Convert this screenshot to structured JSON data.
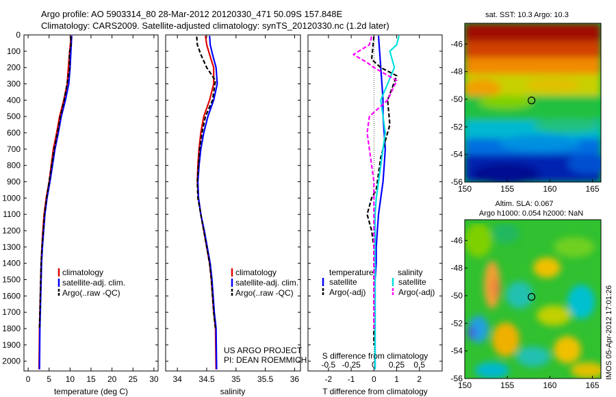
{
  "header": {
    "line1": "Argo profile: AO 5903314_80 28-Mar-2012 20120330_471 50.09S 157.848E",
    "line2": "Climatology: CARS2009. Satellite-adjusted climatology: synTS_20120330.nc (1.2d later)"
  },
  "colors": {
    "climatology": "#e00000",
    "satellite_adj": "#0000ff",
    "argo": "#000000",
    "satellite_s": "#00e0e0",
    "argo_s": "#ff00ff"
  },
  "chart_data": [
    {
      "type": "line",
      "panel": "temperature",
      "xlabel": "temperature (deg C)",
      "ylabel": "",
      "xlim": [
        -1,
        31
      ],
      "ylim": [
        2060,
        0
      ],
      "y_inverted": true,
      "xticks": [
        "0",
        "5",
        "10",
        "15",
        "20",
        "25",
        "30"
      ],
      "xtick_values": [
        0,
        5,
        10,
        15,
        20,
        25,
        30
      ],
      "yticks": [
        "0",
        "100",
        "200",
        "300",
        "400",
        "500",
        "600",
        "700",
        "800",
        "900",
        "1000",
        "1100",
        "1200",
        "1300",
        "1400",
        "1500",
        "1600",
        "1700",
        "1800",
        "1900",
        "2000"
      ],
      "ytick_values": [
        0,
        100,
        200,
        300,
        400,
        500,
        600,
        700,
        800,
        900,
        1000,
        1100,
        1200,
        1300,
        1400,
        1500,
        1600,
        1700,
        1800,
        1900,
        2000
      ],
      "legend": [
        "climatology",
        "satellite-adj. clim.",
        "Argo(..raw -QC)"
      ],
      "series": [
        {
          "name": "climatology",
          "style": "solid",
          "color": "#e00000",
          "x": [
            10.2,
            10.1,
            9.9,
            9.6,
            9.3,
            8.5,
            7.5,
            6.8,
            6.0,
            5.5,
            5.0,
            4.3,
            3.8,
            3.5,
            3.3,
            3.1,
            3.0,
            2.9,
            2.8,
            2.7,
            2.6
          ],
          "y": [
            5,
            50,
            100,
            200,
            300,
            400,
            500,
            600,
            700,
            800,
            900,
            1000,
            1100,
            1200,
            1300,
            1400,
            1500,
            1600,
            1700,
            1800,
            2050
          ]
        },
        {
          "name": "satellite-adj. clim.",
          "style": "solid",
          "color": "#0000ff",
          "x": [
            10.4,
            10.3,
            10.2,
            10.0,
            9.7,
            8.9,
            7.9,
            7.2,
            6.4,
            5.8,
            5.2,
            4.5,
            4.0,
            3.7,
            3.4,
            3.2,
            3.1,
            3.0,
            2.9,
            2.8,
            2.7
          ],
          "y": [
            5,
            50,
            100,
            200,
            300,
            400,
            500,
            600,
            700,
            800,
            900,
            1000,
            1100,
            1200,
            1300,
            1400,
            1500,
            1600,
            1700,
            1800,
            2050
          ]
        },
        {
          "name": "Argo(..raw -QC)",
          "style": "dashed",
          "color": "#000000",
          "x": [
            10.2,
            10.2,
            9.8,
            9.9,
            9.3,
            8.6,
            7.7,
            7.0,
            6.2,
            5.6,
            5.0,
            4.4,
            3.9,
            3.6,
            3.3,
            3.1,
            3.0,
            2.9,
            2.8,
            2.7
          ],
          "y": [
            10,
            60,
            120,
            200,
            300,
            400,
            500,
            600,
            700,
            800,
            900,
            1000,
            1100,
            1200,
            1300,
            1400,
            1500,
            1600,
            1700,
            1800
          ]
        }
      ]
    },
    {
      "type": "line",
      "panel": "salinity",
      "xlabel": "salinity",
      "ylabel": "",
      "xlim": [
        33.8,
        36.1
      ],
      "ylim": [
        2060,
        0
      ],
      "y_inverted": true,
      "xticks": [
        "34",
        "34.5",
        "35",
        "35.5",
        "36"
      ],
      "xtick_values": [
        34,
        34.5,
        35,
        35.5,
        36
      ],
      "legend": [
        "climatology",
        "satellite-adj. clim.",
        "Argo(..raw -QC)"
      ],
      "annotation": [
        "US ARGO PROJECT",
        "PI: DEAN ROEMMICH"
      ],
      "series": [
        {
          "name": "climatology",
          "style": "solid",
          "color": "#e00000",
          "x": [
            34.48,
            34.5,
            34.55,
            34.62,
            34.62,
            34.55,
            34.45,
            34.4,
            34.37,
            34.35,
            34.34,
            34.36,
            34.4,
            34.45,
            34.5,
            34.55,
            34.58,
            34.6,
            34.62,
            34.65,
            34.66
          ],
          "y": [
            5,
            60,
            120,
            200,
            300,
            400,
            500,
            600,
            700,
            800,
            900,
            1000,
            1100,
            1200,
            1300,
            1400,
            1500,
            1600,
            1700,
            1800,
            2050
          ]
        },
        {
          "name": "satellite-adj. clim.",
          "style": "solid",
          "color": "#0000ff",
          "x": [
            34.55,
            34.56,
            34.6,
            34.66,
            34.68,
            34.62,
            34.52,
            34.45,
            34.4,
            34.37,
            34.35,
            34.36,
            34.4,
            34.46,
            34.51,
            34.56,
            34.59,
            34.61,
            34.63,
            34.66,
            34.67
          ],
          "y": [
            5,
            60,
            120,
            200,
            300,
            400,
            500,
            600,
            700,
            800,
            900,
            1000,
            1100,
            1200,
            1300,
            1400,
            1500,
            1600,
            1700,
            1800,
            2050
          ]
        },
        {
          "name": "Argo(..raw -QC)",
          "style": "dashed",
          "color": "#000000",
          "x": [
            34.33,
            34.34,
            34.4,
            34.5,
            34.65,
            34.6,
            34.48,
            34.42,
            34.38,
            34.36,
            34.34,
            34.35,
            34.4,
            34.45,
            34.5,
            34.55,
            34.58,
            34.6,
            34.62,
            34.65
          ],
          "y": [
            10,
            60,
            120,
            200,
            280,
            400,
            500,
            600,
            700,
            800,
            900,
            1000,
            1100,
            1200,
            1300,
            1400,
            1500,
            1600,
            1700,
            1800
          ]
        }
      ]
    },
    {
      "type": "line",
      "panel": "difference",
      "xlabel": "T difference from climatology",
      "xlabel_top": "S difference from climatology",
      "xlim": [
        -2.9,
        3.0
      ],
      "ylim": [
        2060,
        0
      ],
      "y_inverted": true,
      "xticks": [
        "-2",
        "-1",
        "0",
        "1",
        "2"
      ],
      "xtick_values": [
        -2,
        -1,
        0,
        1,
        2
      ],
      "s_xticks": [
        "-0.5",
        "-0.25",
        "0",
        "0.25",
        "0.5"
      ],
      "s_xtick_values": [
        -0.5,
        -0.25,
        0,
        0.25,
        0.5
      ],
      "legend_temperature": {
        "title": "temperature",
        "items": [
          "satellite",
          "Argo(-adj)"
        ]
      },
      "legend_salinity": {
        "title": "salinity",
        "items": [
          "satellite",
          "Argo(-adj)"
        ]
      },
      "series": [
        {
          "name": "temperature satellite",
          "style": "solid",
          "color": "#0000ff",
          "x": [
            0.2,
            0.25,
            0.3,
            0.35,
            0.4,
            0.4,
            0.45,
            0.5,
            0.45,
            0.4,
            0.3,
            0.2,
            0.15,
            0.1,
            0.1,
            0.05,
            0.05,
            0.05,
            0.05,
            0.05,
            0.05
          ],
          "y": [
            5,
            100,
            200,
            300,
            400,
            500,
            600,
            700,
            800,
            900,
            1000,
            1100,
            1200,
            1300,
            1400,
            1500,
            1600,
            1700,
            1800,
            1900,
            2050
          ]
        },
        {
          "name": "temperature Argo(-adj)",
          "style": "dashed",
          "color": "#000000",
          "x": [
            0.0,
            -0.1,
            0.3,
            1.0,
            0.6,
            0.7,
            0.5,
            0.3,
            0.2,
            0.1,
            -0.1,
            -0.3,
            -0.1,
            0.0,
            0.0,
            0.0,
            0.0,
            0.0,
            0.0,
            0.0
          ],
          "y": [
            10,
            150,
            200,
            250,
            400,
            550,
            650,
            750,
            850,
            950,
            1000,
            1100,
            1200,
            1300,
            1400,
            1500,
            1600,
            1700,
            1800,
            1900
          ]
        },
        {
          "name": "salinity satellite",
          "style": "solid",
          "color": "#00e0e0",
          "x": [
            1.1,
            1.0,
            0.7,
            0.9,
            0.6,
            0.3,
            0.4,
            0.5,
            0.4,
            0.3,
            0.2,
            0.1,
            0.05,
            0.05,
            0.05,
            0.05,
            0.05,
            0.05,
            0.05,
            0.05,
            0.05
          ],
          "y": [
            5,
            60,
            100,
            200,
            300,
            400,
            500,
            600,
            700,
            800,
            900,
            1000,
            1100,
            1200,
            1300,
            1400,
            1500,
            1600,
            1700,
            1800,
            2050
          ]
        },
        {
          "name": "salinity Argo(-adj)",
          "style": "dashed",
          "color": "#ff00ff",
          "x": [
            -0.1,
            -0.2,
            -0.9,
            -0.3,
            0.0,
            1.0,
            0.6,
            -0.2,
            -0.3,
            -0.2,
            -0.1,
            0.0,
            0.0,
            0.0,
            0.0,
            0.0,
            0.0,
            0.0,
            0.0,
            0.0
          ],
          "y": [
            10,
            60,
            120,
            170,
            200,
            280,
            400,
            500,
            600,
            700,
            800,
            900,
            1000,
            1200,
            1300,
            1400,
            1500,
            1600,
            1700,
            1800
          ]
        }
      ]
    },
    {
      "type": "heatmap",
      "panel": "sst_map",
      "title": "sat. SST: 10.3 Argo: 10.3",
      "xticks": [
        "150",
        "155",
        "160",
        "165"
      ],
      "xtick_values": [
        150,
        155,
        160,
        165
      ],
      "yticks": [
        "-46",
        "-48",
        "-50",
        "-52",
        "-54",
        "-56"
      ],
      "ytick_values": [
        -46,
        -48,
        -50,
        -52,
        -54,
        -56
      ],
      "xlim": [
        150,
        166
      ],
      "ylim": [
        -56,
        -44.5
      ],
      "marker": {
        "lon": 157.85,
        "lat": -50.09
      }
    },
    {
      "type": "heatmap",
      "panel": "sla_map",
      "title_line1": "Altim. SLA: 0.067",
      "title_line2": "Argo h1000: 0.054 h2000: NaN",
      "xticks": [
        "150",
        "155",
        "160",
        "165"
      ],
      "xtick_values": [
        150,
        155,
        160,
        165
      ],
      "yticks": [
        "-46",
        "-48",
        "-50",
        "-52",
        "-54",
        "-56"
      ],
      "ytick_values": [
        -46,
        -48,
        -50,
        -52,
        -54,
        -56
      ],
      "xlim": [
        150,
        166
      ],
      "ylim": [
        -56,
        -44.5
      ],
      "marker": {
        "lon": 157.85,
        "lat": -50.09
      },
      "side_label": "IMOS 05-Apr-2012 17:01:26"
    }
  ]
}
